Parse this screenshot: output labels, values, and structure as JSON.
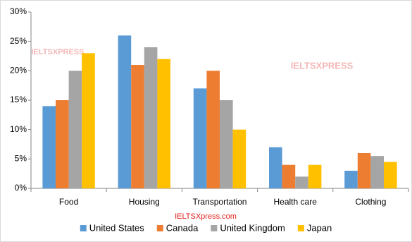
{
  "chart_data": {
    "type": "bar",
    "categories": [
      "Food",
      "Housing",
      "Transportation",
      "Health care",
      "Clothing"
    ],
    "series": [
      {
        "name": "United States",
        "color": "#5b9bd5",
        "values": [
          14,
          26,
          17,
          7,
          3
        ]
      },
      {
        "name": "Canada",
        "color": "#ed7d31",
        "values": [
          15,
          21,
          20,
          4,
          6
        ]
      },
      {
        "name": "United Kingdom",
        "color": "#a5a5a5",
        "values": [
          20,
          24,
          15,
          2,
          5.5
        ]
      },
      {
        "name": "Japan",
        "color": "#ffc000",
        "values": [
          23,
          22,
          10,
          4,
          4.5
        ]
      }
    ],
    "ylim": [
      0,
      30
    ],
    "yticks": [
      {
        "value": 0,
        "label": "0%"
      },
      {
        "value": 5,
        "label": "5%"
      },
      {
        "value": 10,
        "label": "10%"
      },
      {
        "value": 15,
        "label": "15%"
      },
      {
        "value": 20,
        "label": "20%"
      },
      {
        "value": 25,
        "label": "25%"
      },
      {
        "value": 30,
        "label": "30%"
      }
    ],
    "grid": false,
    "legend": "bottom",
    "annotations": [
      "IELTSXPRESS",
      "IELTSXPRESS",
      "IELTSXpress.com"
    ]
  }
}
